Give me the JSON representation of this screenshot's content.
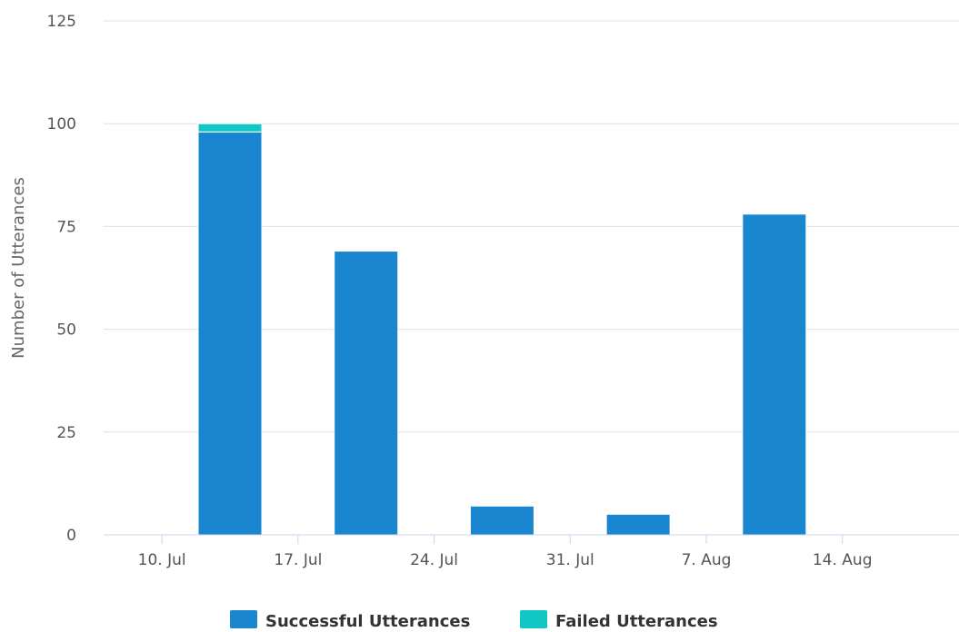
{
  "chart_data": {
    "type": "bar",
    "stacked": true,
    "title": "",
    "xlabel": "",
    "ylabel": "Number of Utterances",
    "ylim": [
      0,
      125
    ],
    "yticks": [
      0,
      25,
      50,
      75,
      100,
      125
    ],
    "xticks": [
      "10. Jul",
      "17. Jul",
      "24. Jul",
      "31. Jul",
      "7. Aug",
      "14. Aug"
    ],
    "xlim": [
      "2017-07-07",
      "2017-08-20"
    ],
    "x": [
      "2017-07-10/2017-07-16",
      "2017-07-17/2017-07-23",
      "2017-07-24/2017-07-30",
      "2017-07-31/2017-08-06",
      "2017-08-07/2017-08-13"
    ],
    "series": [
      {
        "name": "Successful Utterances",
        "color": "#1a86d0",
        "values": [
          98,
          69,
          7,
          5,
          78
        ]
      },
      {
        "name": "Failed Utterances",
        "color": "#11c7c4",
        "values": [
          2,
          0,
          0,
          0,
          0
        ]
      }
    ],
    "grid": true,
    "legend": "bottom-center"
  }
}
